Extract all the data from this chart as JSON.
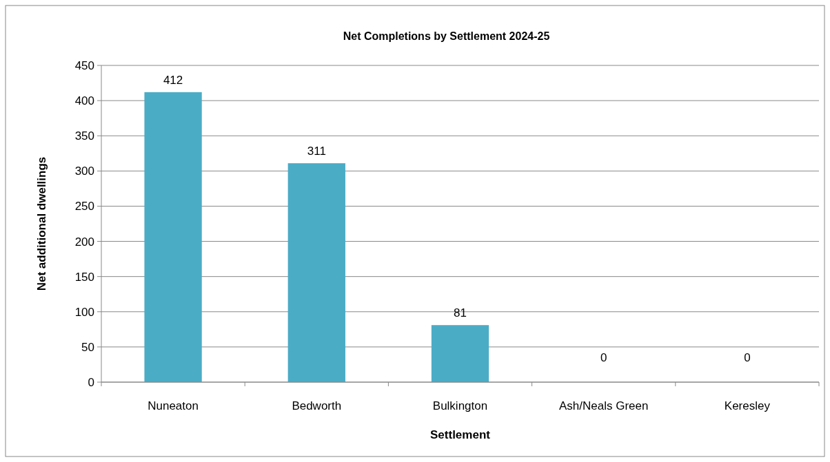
{
  "chart_data": {
    "type": "bar",
    "title": "Net Completions by Settlement 2024-25",
    "xlabel": "Settlement",
    "ylabel": "Net additional dwellings",
    "categories": [
      "Nuneaton",
      "Bedworth",
      "Bulkington",
      "Ash/Neals Green",
      "Keresley"
    ],
    "values": [
      412,
      311,
      81,
      0,
      0
    ],
    "color": "#4bacc6",
    "ylim": [
      0,
      450
    ],
    "yticks": [
      0,
      50,
      100,
      150,
      200,
      250,
      300,
      350,
      400,
      450
    ],
    "grid": "y",
    "data_labels": true
  }
}
